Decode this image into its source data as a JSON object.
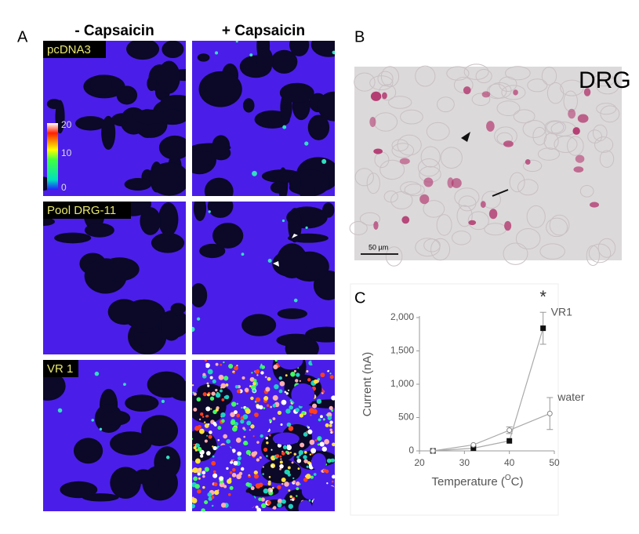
{
  "panel_a": {
    "label": "A",
    "columns": [
      "- Capsaicin",
      "+ Capsaicin"
    ],
    "rows": [
      "pcDNA3",
      "Pool DRG-11",
      "VR 1"
    ],
    "colorbar_ticks": [
      20,
      10,
      0
    ]
  },
  "panel_b": {
    "label": "B",
    "title": "DRG",
    "scale_bar": "50 µm"
  },
  "panel_c": {
    "label": "C"
  },
  "chart_data": {
    "type": "line",
    "y_label": "Current (nA)",
    "x_label": "Temperature (",
    "x_label_sup": "O",
    "x_label_end": "C)",
    "xlim": [
      20,
      50
    ],
    "xticks": [
      20,
      30,
      40,
      50
    ],
    "ylim": [
      0,
      2000
    ],
    "yticks": [
      0,
      {
        "value": 500,
        "label": "500"
      },
      {
        "value": 1000,
        "label": "1,000"
      },
      {
        "value": 1500,
        "label": "1,500"
      },
      {
        "value": 2000,
        "label": "2,000"
      }
    ],
    "series": [
      {
        "name": "VR1",
        "color": "#111111",
        "marker": "square",
        "x": [
          23,
          32,
          40,
          47.5
        ],
        "values": [
          0,
          40,
          150,
          1840
        ],
        "errors": [
          null,
          null,
          null,
          240
        ]
      },
      {
        "name": "water",
        "color": "#888888",
        "marker": "open-circle",
        "x": [
          23,
          32,
          40,
          49
        ],
        "values": [
          0,
          90,
          310,
          560
        ],
        "errors": [
          null,
          null,
          50,
          240
        ]
      }
    ],
    "annotations": [
      "*"
    ]
  }
}
